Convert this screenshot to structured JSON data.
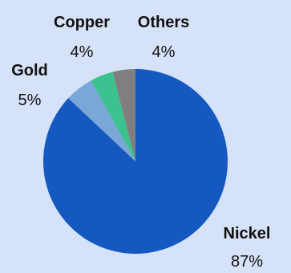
{
  "chart_data": {
    "type": "pie",
    "start_position": "top",
    "direction": "clockwise",
    "slices": [
      {
        "label": "Nickel",
        "value": 87,
        "value_label": "87%",
        "color": "#1558c0"
      },
      {
        "label": "Gold",
        "value": 5,
        "value_label": "5%",
        "color": "#7aa6d8"
      },
      {
        "label": "Copper",
        "value": 4,
        "value_label": "4%",
        "color": "#3cc28f"
      },
      {
        "label": "Others",
        "value": 4,
        "value_label": "4%",
        "color": "#7f7f7f"
      }
    ]
  },
  "style": {
    "background": "#d6e2f8",
    "label_color": "#111111"
  }
}
